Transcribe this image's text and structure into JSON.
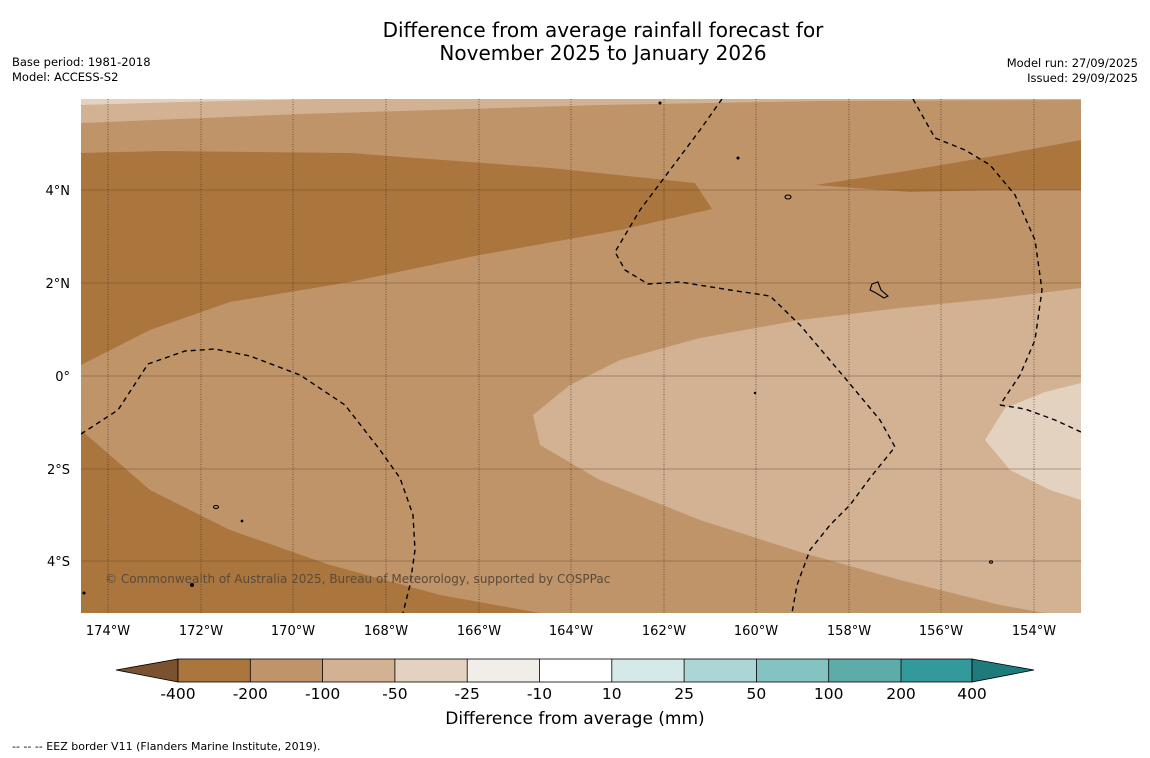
{
  "title": {
    "line1": "Difference from average rainfall forecast for",
    "line2": "November 2025 to January 2026"
  },
  "meta_left": {
    "base_period": "Base period: 1981-2018",
    "model": "Model: ACCESS-S2"
  },
  "meta_right": {
    "model_run": "Model run: 27/09/2025",
    "issued": "Issued: 29/09/2025"
  },
  "map": {
    "lat_labels": [
      "4°N",
      "2°N",
      "0°",
      "2°S",
      "4°S"
    ],
    "lon_labels": [
      "174°W",
      "172°W",
      "170°W",
      "168°W",
      "166°W",
      "164°W",
      "162°W",
      "160°W",
      "158°W",
      "156°W",
      "154°W"
    ],
    "copyright": "© Commonwealth of Australia 2025, Bureau of Meteorology, supported by COSPPac",
    "colors": {
      "c_m400": "#ab763d",
      "c_m200": "#c09469",
      "c_m100": "#d2b293",
      "c_m50": "#e4d2c0",
      "c_m25": "#f1eeea",
      "c_m10": "#ffffff",
      "c_10": "#d5eae8",
      "c_25": "#acd5d5",
      "c_50": "#85c2c2",
      "c_100": "#5eacaa",
      "c_200": "#34999b",
      "c_400": "#1c8482",
      "low_end": "#7b5230",
      "high_end": "#1d7c7b"
    }
  },
  "colorbar": {
    "tick_labels": [
      "-400",
      "-200",
      "-100",
      "-50",
      "-25",
      "-10",
      "10",
      "25",
      "50",
      "100",
      "200",
      "400"
    ],
    "title": "Difference from average (mm)"
  },
  "footer": {
    "text": "--  --  -- EEZ border V11 (Flanders Marine Institute, 2019)."
  }
}
